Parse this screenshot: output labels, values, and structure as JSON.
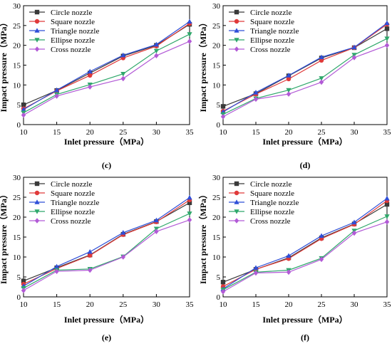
{
  "figure": {
    "series_styles": [
      {
        "color": "#3a3a3a",
        "marker": "square"
      },
      {
        "color": "#e03a3a",
        "marker": "circle"
      },
      {
        "color": "#2f4fd8",
        "marker": "triangle-up"
      },
      {
        "color": "#2fa86b",
        "marker": "triangle-down"
      },
      {
        "color": "#b25ad6",
        "marker": "diamond"
      }
    ],
    "axis_color": "#000000"
  },
  "chart_data": [
    {
      "type": "line",
      "panel_label": "(c)",
      "xlabel": "Inlet pressure（MPa）",
      "ylabel": "Impact pressure（MPa）",
      "x": [
        10,
        15,
        20,
        25,
        30,
        35
      ],
      "xlim": [
        10,
        35
      ],
      "ylim": [
        0,
        30
      ],
      "xticks": [
        10,
        15,
        20,
        25,
        30,
        35
      ],
      "yticks": [
        0,
        5,
        10,
        15,
        20,
        25,
        30
      ],
      "legend_position": "top-left",
      "series": [
        {
          "name": "Circle nozzle",
          "values": [
            5.0,
            8.6,
            13.0,
            17.3,
            20.0,
            25.3
          ]
        },
        {
          "name": "Square nozzle",
          "values": [
            4.0,
            8.5,
            12.4,
            16.8,
            19.8,
            25.5
          ]
        },
        {
          "name": "Triangle nozzle",
          "values": [
            3.8,
            8.7,
            13.4,
            17.5,
            20.2,
            26.0
          ]
        },
        {
          "name": "Ellipse nozzle",
          "values": [
            3.0,
            7.6,
            10.1,
            12.8,
            18.6,
            22.8
          ]
        },
        {
          "name": "Cross nozzle",
          "values": [
            2.4,
            7.2,
            9.5,
            11.6,
            17.4,
            21.0
          ]
        }
      ]
    },
    {
      "type": "line",
      "panel_label": "(d)",
      "xlabel": "Inlet pressure（MPa）",
      "ylabel": "Impact pressure（MPa）",
      "x": [
        10,
        15,
        20,
        25,
        30,
        35
      ],
      "xlim": [
        10,
        35
      ],
      "ylim": [
        0,
        30
      ],
      "xticks": [
        10,
        15,
        20,
        25,
        30,
        35
      ],
      "yticks": [
        0,
        5,
        10,
        15,
        20,
        25,
        30
      ],
      "legend_position": "top-left",
      "series": [
        {
          "name": "Circle nozzle",
          "values": [
            4.6,
            7.8,
            12.3,
            16.8,
            19.4,
            24.2
          ]
        },
        {
          "name": "Square nozzle",
          "values": [
            3.4,
            7.7,
            11.5,
            16.2,
            19.4,
            25.3
          ]
        },
        {
          "name": "Triangle nozzle",
          "values": [
            3.2,
            8.1,
            12.4,
            17.0,
            19.5,
            25.6
          ]
        },
        {
          "name": "Ellipse nozzle",
          "values": [
            2.6,
            6.6,
            8.7,
            11.7,
            17.6,
            21.7
          ]
        },
        {
          "name": "Cross nozzle",
          "values": [
            2.0,
            6.4,
            7.7,
            10.7,
            16.9,
            20.0
          ]
        }
      ]
    },
    {
      "type": "line",
      "panel_label": "(e)",
      "xlabel": "Inlet pressure（MPa）",
      "ylabel": "Impact pressure（MPa）",
      "x": [
        10,
        15,
        20,
        25,
        30,
        35
      ],
      "xlim": [
        10,
        35
      ],
      "ylim": [
        0,
        30
      ],
      "xticks": [
        10,
        15,
        20,
        25,
        30,
        35
      ],
      "yticks": [
        0,
        5,
        10,
        15,
        20,
        25,
        30
      ],
      "legend_position": "top-left",
      "series": [
        {
          "name": "Circle nozzle",
          "values": [
            4.0,
            7.3,
            10.5,
            15.7,
            18.9,
            23.6
          ]
        },
        {
          "name": "Square nozzle",
          "values": [
            3.2,
            7.1,
            10.4,
            15.6,
            18.8,
            24.3
          ]
        },
        {
          "name": "Triangle nozzle",
          "values": [
            2.7,
            7.6,
            11.3,
            16.1,
            19.2,
            24.9
          ]
        },
        {
          "name": "Ellipse nozzle",
          "values": [
            2.2,
            6.7,
            7.0,
            10.1,
            17.1,
            20.9
          ]
        },
        {
          "name": "Cross nozzle",
          "values": [
            1.6,
            6.4,
            6.7,
            10.0,
            16.4,
            19.3
          ]
        }
      ]
    },
    {
      "type": "line",
      "panel_label": "(f)",
      "xlabel": "Inlet pressure（MPa）",
      "ylabel": "Impact pressure（MPa）",
      "x": [
        10,
        15,
        20,
        25,
        30,
        35
      ],
      "xlim": [
        10,
        35
      ],
      "ylim": [
        0,
        30
      ],
      "xticks": [
        10,
        15,
        20,
        25,
        30,
        35
      ],
      "yticks": [
        0,
        5,
        10,
        15,
        20,
        25,
        30
      ],
      "legend_position": "top-left",
      "series": [
        {
          "name": "Circle nozzle",
          "values": [
            3.7,
            6.9,
            9.8,
            14.8,
            18.3,
            23.2
          ]
        },
        {
          "name": "Square nozzle",
          "values": [
            2.6,
            6.9,
            9.6,
            14.6,
            18.2,
            24.1
          ]
        },
        {
          "name": "Triangle nozzle",
          "values": [
            2.0,
            7.3,
            10.3,
            15.3,
            18.7,
            24.7
          ]
        },
        {
          "name": "Ellipse nozzle",
          "values": [
            1.8,
            6.2,
            6.7,
            9.7,
            16.6,
            20.2
          ]
        },
        {
          "name": "Cross nozzle",
          "values": [
            1.3,
            6.0,
            6.2,
            9.4,
            16.0,
            18.8
          ]
        }
      ]
    }
  ]
}
